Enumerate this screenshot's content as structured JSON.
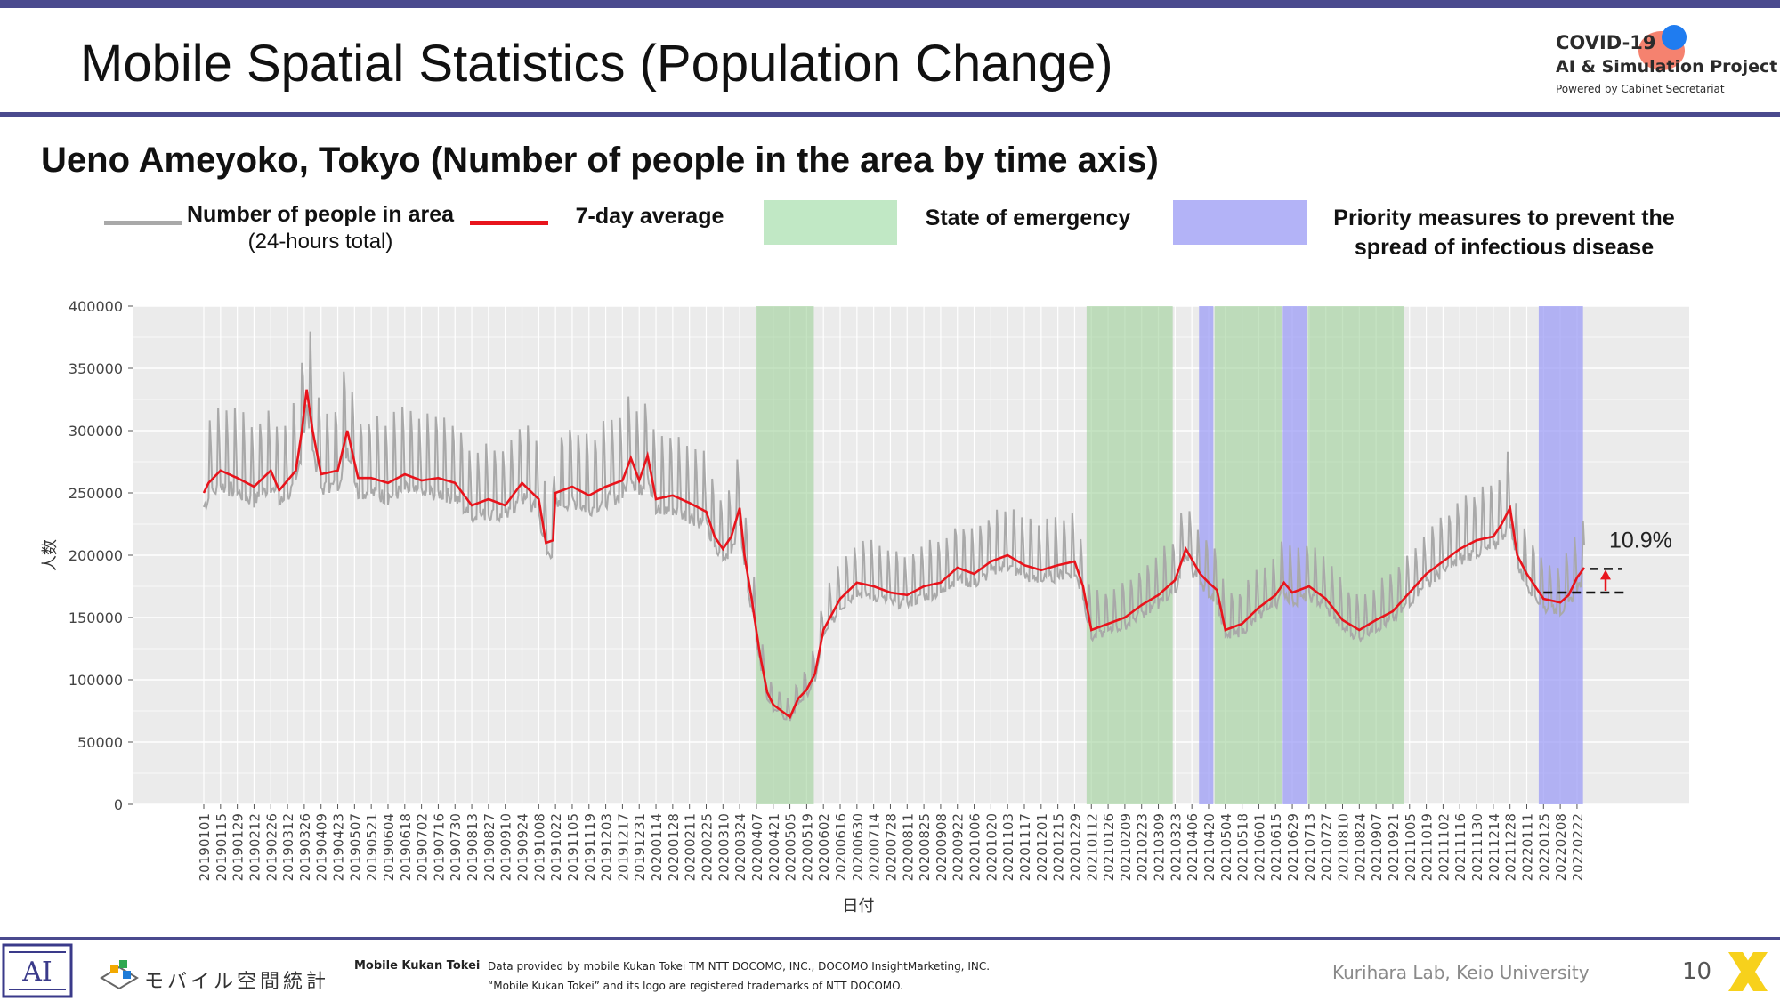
{
  "header": {
    "title": "Mobile Spatial Statistics (Population Change)",
    "logo": {
      "line1": "COVID-19",
      "line2": "AI & Simulation Project",
      "line3": "Powered by Cabinet Secretariat"
    }
  },
  "subtitle": "Ueno Ameyoko, Tokyo (Number of people in the area by time axis)",
  "legend": {
    "people_label": "Number of people in area",
    "people_sub": "(24-hours total)",
    "avg_label": "7-day average",
    "emergency_label": "State of emergency",
    "priority_label_line1": "Priority measures to prevent the",
    "priority_label_line2": "spread of infectious disease"
  },
  "colors": {
    "daily": "#a9a9a9",
    "average": "#e8141c",
    "emergency": "#b5dfb3",
    "priority": "#b3b3f7",
    "panel": "#ebebeb",
    "rule": "#4a4a8e"
  },
  "chart_data": {
    "type": "line",
    "xlabel": "日付",
    "ylabel": "人数",
    "ylim": [
      0,
      400000
    ],
    "yticks": [
      "0",
      "50000",
      "100000",
      "150000",
      "200000",
      "250000",
      "300000",
      "350000",
      "400000"
    ],
    "grid": true,
    "x_tick_labels": [
      "20190101",
      "20190115",
      "20190129",
      "20190212",
      "20190226",
      "20190312",
      "20190326",
      "20190409",
      "20190423",
      "20190507",
      "20190521",
      "20190604",
      "20190618",
      "20190702",
      "20190716",
      "20190730",
      "20190813",
      "20190827",
      "20190910",
      "20190924",
      "20191008",
      "20191022",
      "20191105",
      "20191119",
      "20191203",
      "20191217",
      "20191231",
      "20200114",
      "20200128",
      "20200211",
      "20200225",
      "20200310",
      "20200324",
      "20200407",
      "20200421",
      "20200505",
      "20200519",
      "20200602",
      "20200616",
      "20200630",
      "20200714",
      "20200728",
      "20200811",
      "20200825",
      "20200908",
      "20200922",
      "20201006",
      "20201020",
      "20201103",
      "20201117",
      "20201201",
      "20201215",
      "20201229",
      "20210112",
      "20210126",
      "20210209",
      "20210223",
      "20210309",
      "20210323",
      "20210406",
      "20210420",
      "20210504",
      "20210518",
      "20210601",
      "20210615",
      "20210629",
      "20210713",
      "20210727",
      "20210810",
      "20210824",
      "20210907",
      "20210921",
      "20211005",
      "20211019",
      "20211102",
      "20211116",
      "20211130",
      "20211214",
      "20211228",
      "20220111",
      "20220125",
      "20220208",
      "20220222"
    ],
    "emergency_periods": [
      [
        "2020-04-07",
        "2020-05-25"
      ],
      [
        "2021-01-08",
        "2021-03-21"
      ],
      [
        "2021-04-25",
        "2021-06-20"
      ],
      [
        "2021-07-12",
        "2021-09-30"
      ]
    ],
    "priority_periods": [
      [
        "2021-04-12",
        "2021-04-24"
      ],
      [
        "2021-06-21",
        "2021-07-11"
      ],
      [
        "2022-01-21",
        "2022-02-27"
      ]
    ],
    "daily_range": {
      "weekday_amplitude": 25000
    },
    "average_points": [
      [
        "2019-01-01",
        250000
      ],
      [
        "2019-01-05",
        258000
      ],
      [
        "2019-01-15",
        268000
      ],
      [
        "2019-01-29",
        262000
      ],
      [
        "2019-02-12",
        255000
      ],
      [
        "2019-02-26",
        268000
      ],
      [
        "2019-03-05",
        252000
      ],
      [
        "2019-03-19",
        268000
      ],
      [
        "2019-03-24",
        300000
      ],
      [
        "2019-03-28",
        333000
      ],
      [
        "2019-04-02",
        300000
      ],
      [
        "2019-04-09",
        265000
      ],
      [
        "2019-04-23",
        268000
      ],
      [
        "2019-05-01",
        300000
      ],
      [
        "2019-05-10",
        262000
      ],
      [
        "2019-05-21",
        262000
      ],
      [
        "2019-06-04",
        258000
      ],
      [
        "2019-06-18",
        265000
      ],
      [
        "2019-07-02",
        260000
      ],
      [
        "2019-07-16",
        262000
      ],
      [
        "2019-07-30",
        258000
      ],
      [
        "2019-08-13",
        240000
      ],
      [
        "2019-08-27",
        245000
      ],
      [
        "2019-09-10",
        240000
      ],
      [
        "2019-09-24",
        258000
      ],
      [
        "2019-10-08",
        245000
      ],
      [
        "2019-10-14",
        210000
      ],
      [
        "2019-10-20",
        212000
      ],
      [
        "2019-10-22",
        250000
      ],
      [
        "2019-11-05",
        255000
      ],
      [
        "2019-11-19",
        248000
      ],
      [
        "2019-12-03",
        255000
      ],
      [
        "2019-12-17",
        260000
      ],
      [
        "2019-12-24",
        278000
      ],
      [
        "2019-12-31",
        260000
      ],
      [
        "2020-01-07",
        280000
      ],
      [
        "2020-01-14",
        245000
      ],
      [
        "2020-01-28",
        248000
      ],
      [
        "2020-02-11",
        242000
      ],
      [
        "2020-02-25",
        235000
      ],
      [
        "2020-03-03",
        215000
      ],
      [
        "2020-03-10",
        205000
      ],
      [
        "2020-03-17",
        215000
      ],
      [
        "2020-03-24",
        238000
      ],
      [
        "2020-03-28",
        200000
      ],
      [
        "2020-04-03",
        165000
      ],
      [
        "2020-04-10",
        120000
      ],
      [
        "2020-04-16",
        90000
      ],
      [
        "2020-04-21",
        80000
      ],
      [
        "2020-05-05",
        70000
      ],
      [
        "2020-05-12",
        85000
      ],
      [
        "2020-05-19",
        92000
      ],
      [
        "2020-05-26",
        105000
      ],
      [
        "2020-06-02",
        140000
      ],
      [
        "2020-06-16",
        165000
      ],
      [
        "2020-06-30",
        178000
      ],
      [
        "2020-07-14",
        175000
      ],
      [
        "2020-07-28",
        170000
      ],
      [
        "2020-08-11",
        168000
      ],
      [
        "2020-08-25",
        175000
      ],
      [
        "2020-09-08",
        178000
      ],
      [
        "2020-09-22",
        190000
      ],
      [
        "2020-10-06",
        185000
      ],
      [
        "2020-10-20",
        195000
      ],
      [
        "2020-11-03",
        200000
      ],
      [
        "2020-11-17",
        192000
      ],
      [
        "2020-12-01",
        188000
      ],
      [
        "2020-12-15",
        192000
      ],
      [
        "2020-12-29",
        195000
      ],
      [
        "2021-01-05",
        175000
      ],
      [
        "2021-01-12",
        140000
      ],
      [
        "2021-01-26",
        145000
      ],
      [
        "2021-02-09",
        150000
      ],
      [
        "2021-02-23",
        160000
      ],
      [
        "2021-03-09",
        168000
      ],
      [
        "2021-03-23",
        180000
      ],
      [
        "2021-04-01",
        205000
      ],
      [
        "2021-04-13",
        185000
      ],
      [
        "2021-04-20",
        178000
      ],
      [
        "2021-04-27",
        172000
      ],
      [
        "2021-05-04",
        140000
      ],
      [
        "2021-05-18",
        145000
      ],
      [
        "2021-06-01",
        158000
      ],
      [
        "2021-06-15",
        168000
      ],
      [
        "2021-06-22",
        178000
      ],
      [
        "2021-06-29",
        170000
      ],
      [
        "2021-07-13",
        175000
      ],
      [
        "2021-07-27",
        165000
      ],
      [
        "2021-08-10",
        148000
      ],
      [
        "2021-08-24",
        140000
      ],
      [
        "2021-09-07",
        148000
      ],
      [
        "2021-09-21",
        155000
      ],
      [
        "2021-10-05",
        170000
      ],
      [
        "2021-10-19",
        185000
      ],
      [
        "2021-11-02",
        195000
      ],
      [
        "2021-11-16",
        205000
      ],
      [
        "2021-11-30",
        212000
      ],
      [
        "2021-12-14",
        215000
      ],
      [
        "2021-12-21",
        225000
      ],
      [
        "2021-12-28",
        238000
      ],
      [
        "2022-01-03",
        200000
      ],
      [
        "2022-01-11",
        185000
      ],
      [
        "2022-01-25",
        165000
      ],
      [
        "2022-02-08",
        162000
      ],
      [
        "2022-02-15",
        168000
      ],
      [
        "2022-02-22",
        182000
      ],
      [
        "2022-02-28",
        190000
      ]
    ],
    "annotation": {
      "label": "10.9%",
      "from": 170000,
      "to": 189000
    }
  },
  "footer": {
    "logo_text": "モバイル空間統計",
    "brand": "Mobile Kukan Tokei",
    "credit1": "Data provided by mobile Kukan Tokei TM NTT DOCOMO, INC., DOCOMO InsightMarketing, INC.",
    "credit2": "“Mobile Kukan Tokei” and its logo are registered trademarks of NTT DOCOMO.",
    "lab": "Kurihara Lab, Keio University",
    "page": "10"
  }
}
